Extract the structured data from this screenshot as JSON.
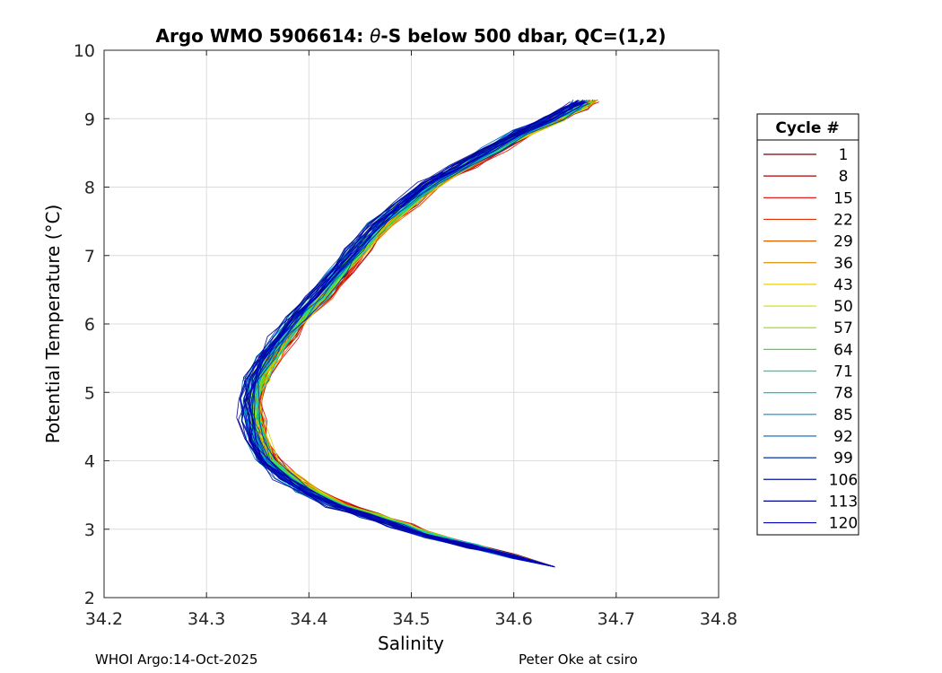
{
  "chart_data": {
    "type": "line",
    "title": "Argo WMO 5906614: θ-S below 500 dbar,  QC=(1,2)",
    "title_parts": {
      "prefix": "Argo WMO 5906614: ",
      "theta": "θ",
      "suffix": "-S below 500 dbar,  QC=(1,2)"
    },
    "xlabel": "Salinity",
    "ylabel": "Potential Temperature (°C)",
    "xlim": [
      34.2,
      34.8
    ],
    "ylim": [
      2,
      10
    ],
    "xticks": [
      34.2,
      34.3,
      34.4,
      34.5,
      34.6,
      34.7,
      34.8
    ],
    "xtick_labels": [
      "34.2",
      "34.3",
      "34.4",
      "34.5",
      "34.6",
      "34.7",
      "34.8"
    ],
    "yticks": [
      2,
      3,
      4,
      5,
      6,
      7,
      8,
      9,
      10
    ],
    "ytick_labels": [
      "2",
      "3",
      "4",
      "5",
      "6",
      "7",
      "8",
      "9",
      "10"
    ],
    "grid": true,
    "legend": {
      "title": "Cycle #",
      "position": "right",
      "entries": [
        {
          "label": "1",
          "color": "#800000"
        },
        {
          "label": "8",
          "color": "#b00000"
        },
        {
          "label": "15",
          "color": "#e00000"
        },
        {
          "label": "22",
          "color": "#e03000"
        },
        {
          "label": "29",
          "color": "#e06000"
        },
        {
          "label": "36",
          "color": "#e09000"
        },
        {
          "label": "43",
          "color": "#e8d000"
        },
        {
          "label": "50",
          "color": "#d0e000"
        },
        {
          "label": "57",
          "color": "#90e000"
        },
        {
          "label": "64",
          "color": "#40e040"
        },
        {
          "label": "71",
          "color": "#00e0a0"
        },
        {
          "label": "78",
          "color": "#00c8e0"
        },
        {
          "label": "85",
          "color": "#0090d0"
        },
        {
          "label": "92",
          "color": "#0060c0"
        },
        {
          "label": "99",
          "color": "#0030b0"
        },
        {
          "label": "106",
          "color": "#0010a0"
        },
        {
          "label": "113",
          "color": "#000090"
        },
        {
          "label": "120",
          "color": "#0000c0"
        }
      ]
    },
    "mean_profile": {
      "salinity": [
        34.64,
        34.6,
        34.56,
        34.52,
        34.49,
        34.46,
        34.43,
        34.4,
        34.38,
        34.36,
        34.35,
        34.345,
        34.345,
        34.35,
        34.36,
        34.375,
        34.39,
        34.41,
        34.43,
        34.45,
        34.47,
        34.495,
        34.52,
        34.55,
        34.58,
        34.61,
        34.64,
        34.66,
        34.67
      ],
      "theta": [
        2.45,
        2.6,
        2.75,
        2.9,
        3.05,
        3.2,
        3.35,
        3.55,
        3.75,
        4.0,
        4.3,
        4.6,
        4.9,
        5.2,
        5.5,
        5.8,
        6.1,
        6.4,
        6.75,
        7.1,
        7.45,
        7.75,
        8.05,
        8.3,
        8.55,
        8.8,
        9.0,
        9.15,
        9.25
      ]
    }
  },
  "footer": {
    "left": "WHOI Argo:14-Oct-2025",
    "right": "Peter Oke at csiro"
  }
}
